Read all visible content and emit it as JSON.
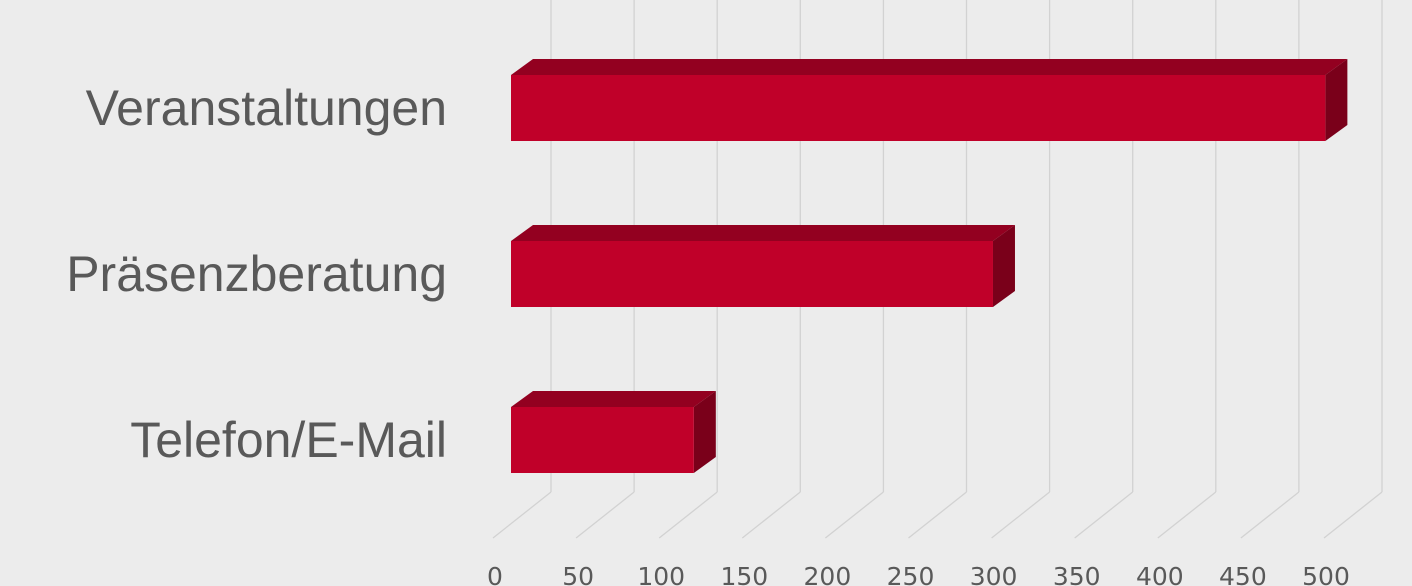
{
  "colors": {
    "background": "#ececec",
    "bar_front": "#c00029",
    "bar_top": "#930020",
    "bar_side": "#7a001a",
    "grid": "#d2d2d2",
    "category_text": "#595959",
    "tick_text": "#595959"
  },
  "chart_data": {
    "type": "bar",
    "orientation": "horizontal",
    "style": "3d",
    "title": "",
    "xlabel": "",
    "ylabel": "",
    "categories": [
      "Veranstaltungen",
      "Präsenzberatung",
      "Telefon/E-Mail"
    ],
    "values": [
      490,
      290,
      110
    ],
    "xlim": [
      0,
      500
    ],
    "ticks": [
      "0",
      "50",
      "100",
      "150",
      "200",
      "250",
      "300",
      "350",
      "400",
      "450",
      "500"
    ],
    "grid": true,
    "legend": "none"
  }
}
